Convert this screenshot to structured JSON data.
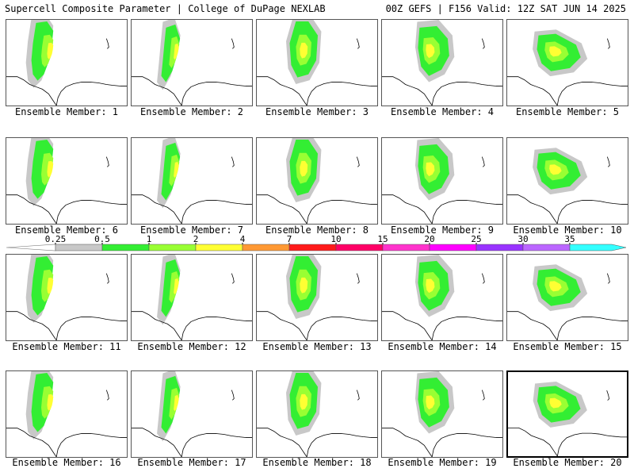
{
  "header": {
    "title_left": "Supercell Composite Parameter | College of DuPage NEXLAB",
    "title_right": "00Z GEFS | F156 Valid: 12Z SAT JUN 14 2025"
  },
  "colorbar": {
    "ticks": [
      "0.25",
      "0.5",
      "1",
      "2",
      "4",
      "7",
      "10",
      "15",
      "20",
      "25",
      "30",
      "35"
    ],
    "colors": [
      "#c8c8c8",
      "#33ee33",
      "#99ff33",
      "#ffff33",
      "#ff9933",
      "#ff1a1a",
      "#ff0066",
      "#ff33cc",
      "#ff00ff",
      "#9933ff",
      "#bb66ff",
      "#33ffff"
    ],
    "start_color": "#ffffff"
  },
  "members": [
    {
      "label": "Ensemble Member: 1",
      "selected": false
    },
    {
      "label": "Ensemble Member: 2",
      "selected": false
    },
    {
      "label": "Ensemble Member: 3",
      "selected": false
    },
    {
      "label": "Ensemble Member: 4",
      "selected": false
    },
    {
      "label": "Ensemble Member: 5",
      "selected": false
    },
    {
      "label": "Ensemble Member: 6",
      "selected": false
    },
    {
      "label": "Ensemble Member: 7",
      "selected": false
    },
    {
      "label": "Ensemble Member: 8",
      "selected": false
    },
    {
      "label": "Ensemble Member: 9",
      "selected": false
    },
    {
      "label": "Ensemble Member: 10",
      "selected": false
    },
    {
      "label": "Ensemble Member: 11",
      "selected": false
    },
    {
      "label": "Ensemble Member: 12",
      "selected": false
    },
    {
      "label": "Ensemble Member: 13",
      "selected": false
    },
    {
      "label": "Ensemble Member: 14",
      "selected": false
    },
    {
      "label": "Ensemble Member: 15",
      "selected": false
    },
    {
      "label": "Ensemble Member: 16",
      "selected": false
    },
    {
      "label": "Ensemble Member: 17",
      "selected": false
    },
    {
      "label": "Ensemble Member: 18",
      "selected": false
    },
    {
      "label": "Ensemble Member: 19",
      "selected": false
    },
    {
      "label": "Ensemble Member: 20",
      "selected": true
    }
  ]
}
